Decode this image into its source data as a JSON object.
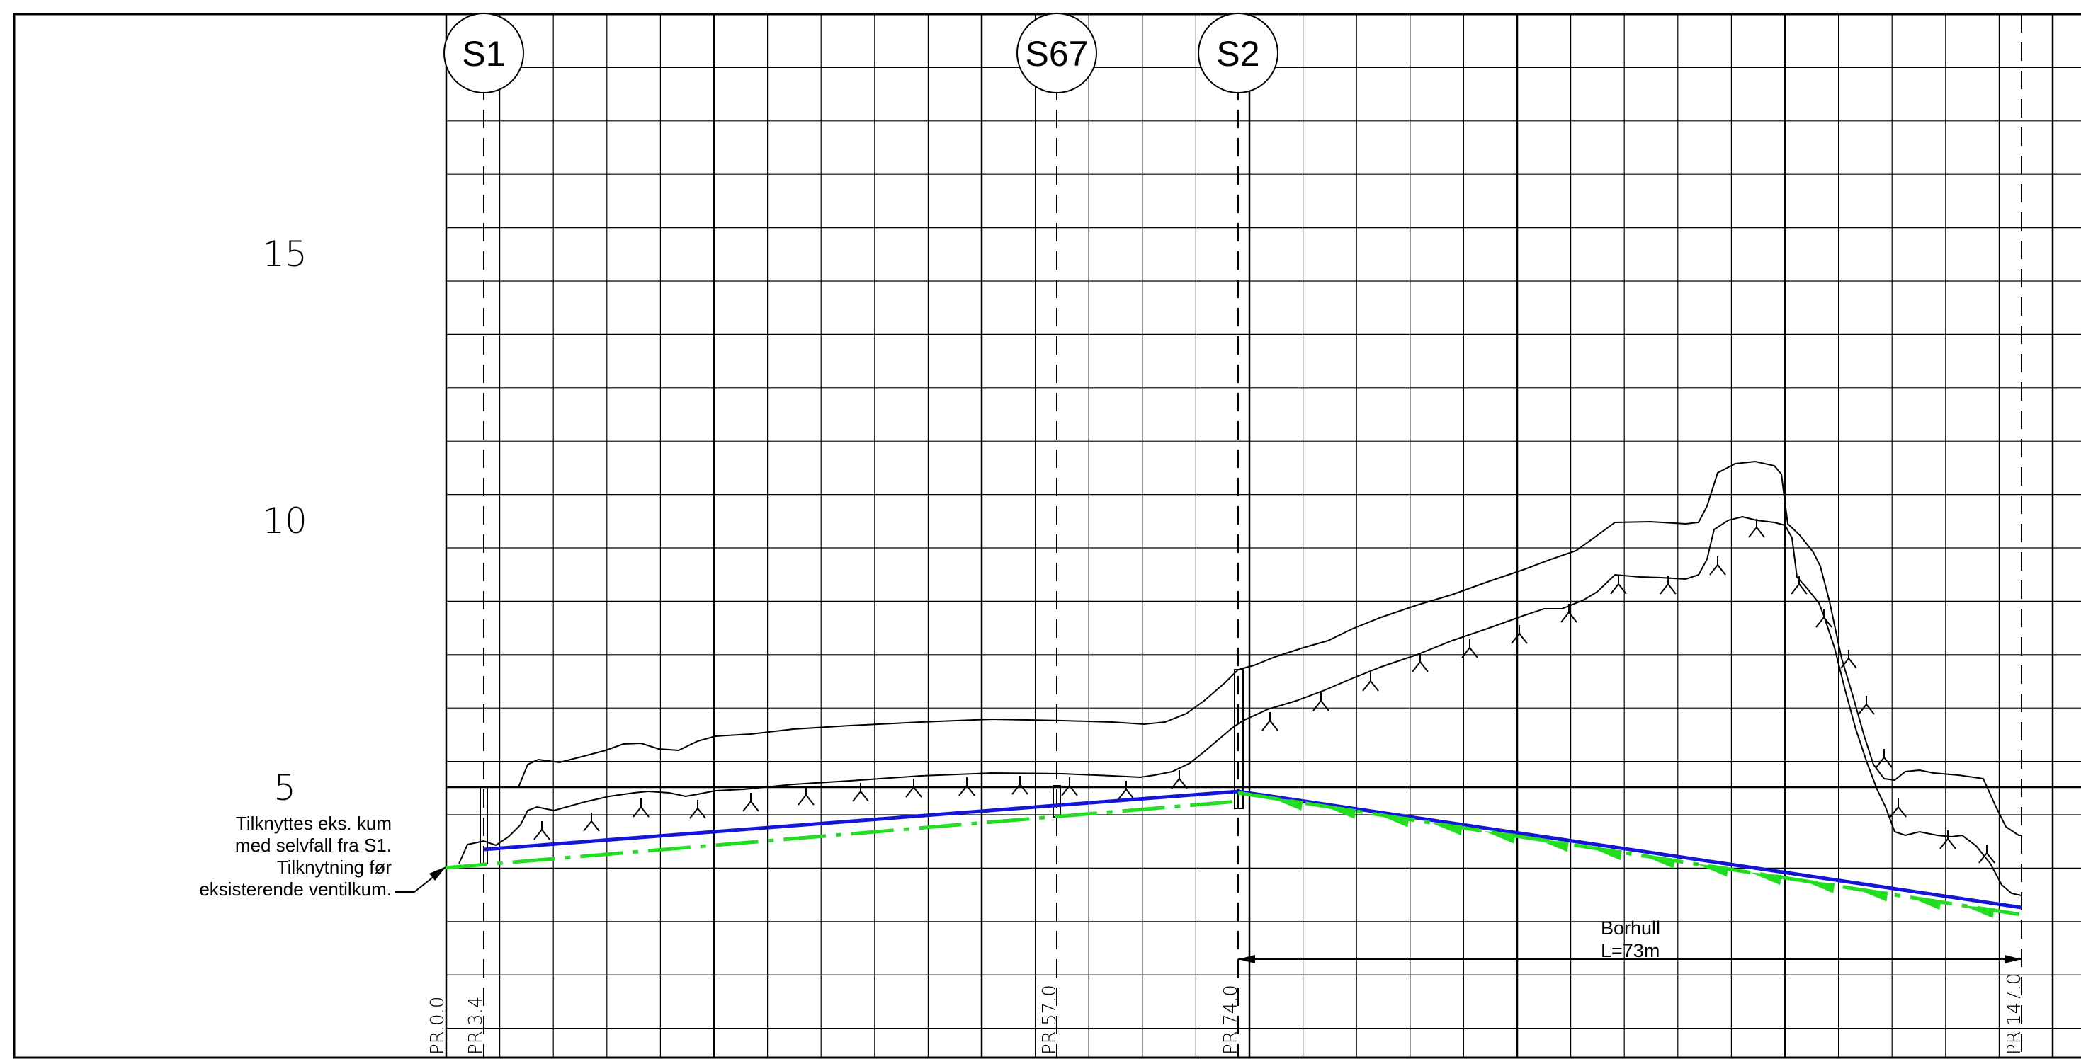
{
  "elevation_labels": [
    "15",
    "10",
    "5"
  ],
  "manholes": [
    {
      "label": "S1"
    },
    {
      "label": "S67"
    },
    {
      "label": "S2"
    }
  ],
  "stations": [
    "PR.0.0",
    "PR.3.4",
    "PR.57.0",
    "PR.74.0",
    "PR.147.0"
  ],
  "annotation": {
    "lines": [
      "Tilknyttes eks. kum",
      "med selvfall fra S1.",
      "Tilknytning før",
      "eksisterende ventilkum."
    ]
  },
  "borehole": {
    "title": "Borhull",
    "length": "L=73m"
  },
  "colors": {
    "grid": "#000000",
    "pipe_blue": "#1515d8",
    "pipe_green": "#22dd22",
    "terrain": "#000000"
  },
  "icons": {
    "rock_symbol": "rock-hatch-icon",
    "dimension_arrow": "arrow-head-icon",
    "leader_arrow": "leader-arrow-icon"
  }
}
